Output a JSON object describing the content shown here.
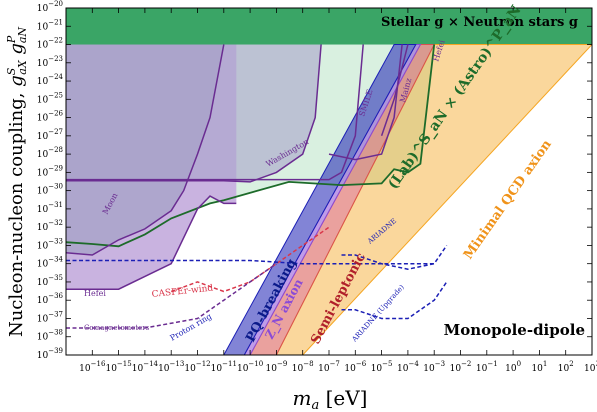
{
  "chart_data": {
    "type": "line",
    "title": "",
    "xlabel": "m_a [eV]",
    "ylabel": "Nucleon-nucleon coupling, g^S_aX g^P_aN",
    "xscale": "log",
    "yscale": "log",
    "xlim": [
      1e-17,
      1000.0
    ],
    "ylim": [
      1e-39,
      1e-20
    ],
    "x_ticks": [
      "10^-16",
      "10^-15",
      "10^-14",
      "10^-13",
      "10^-12",
      "10^-11",
      "10^-10",
      "10^-9",
      "10^-8",
      "10^-7",
      "10^-6",
      "10^-5",
      "10^-4",
      "10^-3",
      "10^-2",
      "10^-1",
      "10^0",
      "10^1",
      "10^2",
      "10^3"
    ],
    "y_ticks": [
      "10^-39",
      "10^-38",
      "10^-37",
      "10^-36",
      "10^-35",
      "10^-34",
      "10^-33",
      "10^-32",
      "10^-31",
      "10^-30",
      "10^-29",
      "10^-28",
      "10^-27",
      "10^-26",
      "10^-25",
      "10^-24",
      "10^-23",
      "10^-22",
      "10^-21",
      "10^-20"
    ],
    "grid": false,
    "bands": [
      {
        "name": "Stellar g^S_aN × Neutron stars g^P_aN",
        "color": "#3aa566",
        "y": [
          1e-22,
          1e-20
        ]
      },
      {
        "name": "Minimal QCD axion",
        "color": "#f5a623",
        "lower": [
          [
            1e-08,
            1e-39
          ],
          [
            1000.0,
            1e-22
          ]
        ],
        "upper": [
          [
            1e-09,
            1e-39
          ],
          [
            0.001,
            1e-22
          ]
        ]
      },
      {
        "name": "Semi-leptonic",
        "color": "#d9534f",
        "lower": [
          [
            1e-09,
            1e-39
          ],
          [
            0.001,
            1e-22
          ]
        ],
        "upper": [
          [
            1e-10,
            1e-39
          ],
          [
            0.0003,
            1e-22
          ]
        ]
      },
      {
        "name": "Z_N axion",
        "color": "#8a4bd6",
        "lower": [
          [
            1e-10,
            1e-39
          ],
          [
            0.0003,
            1e-22
          ]
        ],
        "upper": [
          [
            6e-11,
            1e-39
          ],
          [
            0.0002,
            1e-22
          ]
        ]
      },
      {
        "name": "PQ-breaking",
        "color": "#1b1fb5",
        "lower": [
          [
            6e-11,
            1e-39
          ],
          [
            0.0002,
            1e-22
          ]
        ],
        "upper": [
          [
            1e-11,
            1e-39
          ],
          [
            3e-05,
            1e-22
          ]
        ]
      }
    ],
    "series": [
      {
        "name": "(Lab)^S_aN × (Astro)^P_aN",
        "color": "#1d6b2a",
        "points": [
          [
            1e-17,
            1.5e-33
          ],
          [
            1e-16,
            1.2e-33
          ],
          [
            1e-15,
            9e-34
          ],
          [
            1e-14,
            4e-33
          ],
          [
            1e-13,
            3e-32
          ],
          [
            3e-12,
            2e-31
          ],
          [
            1e-11,
            3e-31
          ],
          [
            3e-09,
            3e-30
          ],
          [
            3e-07,
            2e-30
          ],
          [
            1e-05,
            2.5e-30
          ],
          [
            3e-05,
            1.5e-29
          ],
          [
            0.0001,
            1e-29
          ],
          [
            0.0003,
            3e-29
          ],
          [
            0.001,
            1e-22
          ]
        ]
      },
      {
        "name": "Hefei",
        "color": "#6a2c91",
        "points": [
          [
            1e-17,
            4e-36
          ],
          [
            1e-15,
            4e-36
          ],
          [
            1e-14,
            2e-35
          ],
          [
            1e-13,
            1e-34
          ],
          [
            1e-12,
            1e-31
          ],
          [
            3e-12,
            5e-31
          ],
          [
            1e-11,
            2e-31
          ],
          [
            3e-11,
            2e-31
          ]
        ]
      },
      {
        "name": "Moon",
        "color": "#6a2c91",
        "points": [
          [
            1e-17,
            4e-34
          ],
          [
            1e-16,
            3e-34
          ],
          [
            1e-15,
            2e-33
          ],
          [
            1e-14,
            8e-33
          ],
          [
            1e-13,
            8e-32
          ],
          [
            3e-13,
            1e-30
          ],
          [
            1e-12,
            1e-28
          ],
          [
            3e-12,
            1e-26
          ],
          [
            1e-11,
            1e-22
          ]
        ]
      },
      {
        "name": "Washington",
        "color": "#6a2c91",
        "points": [
          [
            1e-17,
            3.5e-30
          ],
          [
            1e-11,
            3.5e-30
          ],
          [
            1e-10,
            3e-30
          ],
          [
            1e-09,
            1e-29
          ],
          [
            1e-08,
            1e-28
          ],
          [
            3e-08,
            1e-26
          ],
          [
            5e-08,
            1e-22
          ]
        ]
      },
      {
        "name": "SMILE",
        "color": "#6a2c91",
        "points": [
          [
            1e-17,
            4e-30
          ],
          [
            1e-07,
            4e-30
          ],
          [
            3e-07,
            1e-29
          ],
          [
            1e-06,
            1e-27
          ],
          [
            2e-06,
            1e-22
          ]
        ]
      },
      {
        "name": "Mainz",
        "color": "#6a2c91",
        "points": [
          [
            1e-07,
            1e-28
          ],
          [
            1e-06,
            5e-29
          ],
          [
            1e-05,
            1e-28
          ],
          [
            3e-05,
            1e-26
          ],
          [
            6e-05,
            1e-22
          ]
        ]
      },
      {
        "name": "Hefei",
        "color": "#6a2c91",
        "points": [
          [
            1e-05,
            1e-27
          ],
          [
            3e-05,
            1e-25
          ],
          [
            0.0001,
            1e-22
          ]
        ]
      },
      {
        "name": "CASPEr-wind",
        "color": "#d9364a",
        "dashed": true,
        "points": [
          [
            1e-13,
            3e-36
          ],
          [
            1e-12,
            1e-35
          ],
          [
            1e-11,
            3e-36
          ],
          [
            1e-10,
            1e-35
          ],
          [
            1e-09,
            1e-34
          ],
          [
            1e-08,
            1e-33
          ],
          [
            1e-07,
            1e-32
          ]
        ]
      },
      {
        "name": "Comagnetometers",
        "color": "#6a2c91",
        "dashed": true,
        "points": [
          [
            1e-17,
            3e-38
          ],
          [
            1e-14,
            3e-38
          ],
          [
            1e-12,
            1e-37
          ],
          [
            1e-11,
            1e-36
          ],
          [
            1e-10,
            1e-35
          ],
          [
            1e-09,
            1e-34
          ]
        ]
      },
      {
        "name": "Proton ring",
        "color": "#1b1fb5",
        "dashed": true,
        "points": [
          [
            1e-17,
            1.5e-34
          ],
          [
            1e-10,
            1.5e-34
          ],
          [
            1e-08,
            1e-34
          ],
          [
            1e-06,
            1e-34
          ],
          [
            0.001,
            1e-34
          ]
        ]
      },
      {
        "name": "ARIADNE",
        "color": "#1b1fb5",
        "dashed": true,
        "points": [
          [
            3e-07,
            3e-34
          ],
          [
            1e-06,
            3e-34
          ],
          [
            1e-05,
            1e-34
          ],
          [
            0.0001,
            5e-35
          ],
          [
            0.001,
            1e-34
          ],
          [
            0.003,
            1e-33
          ]
        ]
      },
      {
        "name": "ARIADNE (Upgrade)",
        "color": "#1b1fb5",
        "dashed": true,
        "points": [
          [
            3e-07,
            3e-37
          ],
          [
            1e-06,
            3e-37
          ],
          [
            1e-05,
            1e-37
          ],
          [
            0.0001,
            1e-37
          ],
          [
            0.001,
            1e-36
          ],
          [
            0.003,
            1e-35
          ]
        ]
      }
    ],
    "annotations": [
      "Stellar g^S_aN × Neutron stars g^P_aN",
      "(Lab)^S_aN × (Astro)^P_aN",
      "Minimal QCD axion",
      "Semi-leptonic",
      "Z_N axion",
      "PQ-breaking",
      "Monopole-dipole",
      "Hefei",
      "Moon",
      "Washington",
      "SMILE",
      "Mainz",
      "CASPEr-wind",
      "Comagnetometers",
      "Proton ring",
      "ARIADNE",
      "ARIADNE (Upgrade)"
    ]
  }
}
